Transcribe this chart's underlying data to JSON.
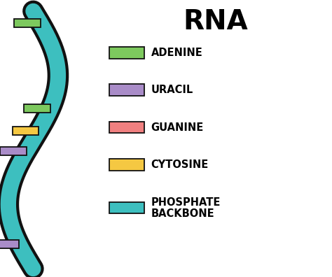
{
  "title": "RNA",
  "title_fontsize": 28,
  "title_fontweight": "bold",
  "legend_items": [
    {
      "label": "ADENINE",
      "color": "#7DC95E"
    },
    {
      "label": "URACIL",
      "color": "#A98CC8"
    },
    {
      "label": "GUANINE",
      "color": "#F08080"
    },
    {
      "label": "CYTOSINE",
      "color": "#F5C842"
    },
    {
      "label": "PHOSPHATE\nBACKBONE",
      "color": "#3DBFBF"
    }
  ],
  "backbone_color": "#3DBFBF",
  "backbone_edge_color": "#111111",
  "nucleobase_colors": [
    "#7DC95E",
    "#7DC95E",
    "#F5C842",
    "#A98CC8",
    "#A98CC8"
  ],
  "nucleobase_edge_color": "#111111",
  "background_color": "#ffffff",
  "label_fontsize": 10.5,
  "label_fontweight": "bold"
}
